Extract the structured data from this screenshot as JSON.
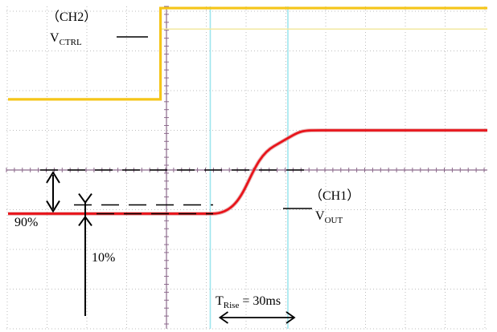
{
  "labels": {
    "ch2": "（CH2）",
    "vctrl_main": "V",
    "vctrl_sub": "CTRL",
    "ch1": "（CH1）",
    "vout_main": "V",
    "vout_sub": "OUT",
    "pct90": "90%",
    "pct10": "10%",
    "trise_main": "T",
    "trise_sub": "Rise",
    "trise_value": " = 30ms"
  },
  "colors": {
    "ch1": "#e8141b",
    "ch2": "#f5c518",
    "cursor": "#9ee6ee",
    "grid": "#bdbdbd",
    "ch1_raw": "#d98a8a",
    "ch2_raw": "#f2e8a0"
  },
  "chart_data": {
    "type": "line",
    "title": "",
    "xlabel": "",
    "ylabel": "",
    "grid": true,
    "series": [
      {
        "name": "CH2",
        "x": [
          -10,
          -0.15,
          -0.15,
          8.2
        ],
        "y": [
          1.78,
          1.78,
          4.08,
          4.08
        ]
      },
      {
        "name": "CH1",
        "x": [
          -10,
          1.15,
          1.7,
          2.2,
          2.7,
          3.2,
          3.6,
          3.9,
          4.2,
          8.2
        ],
        "y": [
          -1.1,
          -1.1,
          -0.55,
          0.05,
          0.55,
          0.85,
          0.98,
          1.0,
          1.0,
          1.0
        ]
      }
    ],
    "rise_time_ms": 30,
    "levels_percent": [
      10,
      90
    ]
  }
}
